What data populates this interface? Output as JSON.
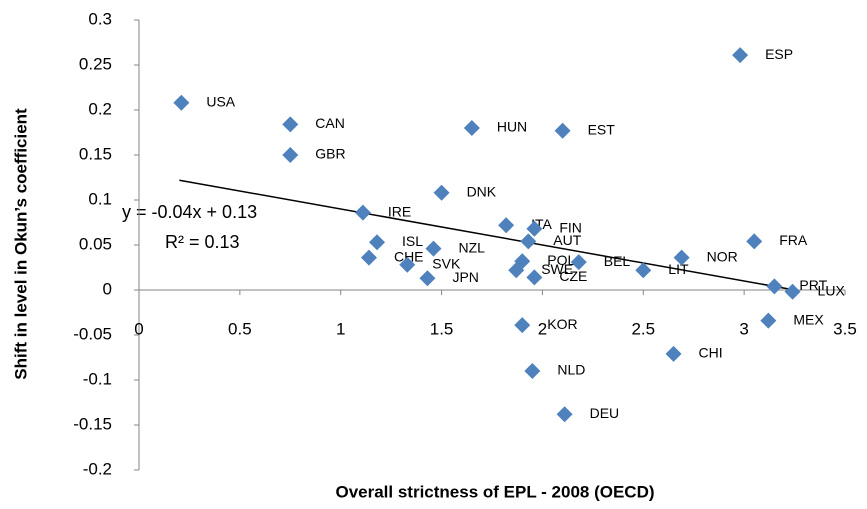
{
  "chart_data": {
    "type": "scatter",
    "x_label": "Overall strictness of EPL - 2008 (OECD)",
    "y_label": "Shift in level in Okun’s coefficient",
    "xlim": [
      0,
      3.5
    ],
    "xticks": [
      0,
      0.5,
      1,
      1.5,
      2,
      2.5,
      3,
      3.5
    ],
    "ylim": [
      -0.2,
      0.3
    ],
    "yticks": [
      -0.2,
      -0.15,
      -0.1,
      -0.05,
      0,
      0.05,
      0.1,
      0.15,
      0.2,
      0.25,
      0.3
    ],
    "series": [
      {
        "color": "#4f81bd",
        "labels": [
          "USA",
          "CAN",
          "GBR",
          "HUN",
          "EST",
          "ESP",
          "DNK",
          "IRE",
          "ITA",
          "FIN",
          "AUT",
          "ISL",
          "NZL",
          "CHE",
          "SVK",
          "JPN",
          "POL",
          "SWE",
          "CZE",
          "BEL",
          "LIT",
          "NOR",
          "FRA",
          "PRT",
          "LUX",
          "MEX",
          "CHI",
          "KOR",
          "NLD",
          "DEU"
        ],
        "x": [
          0.21,
          0.75,
          0.75,
          1.65,
          2.1,
          2.98,
          1.5,
          1.11,
          1.82,
          1.96,
          1.93,
          1.18,
          1.46,
          1.14,
          1.33,
          1.43,
          1.9,
          1.87,
          1.96,
          2.18,
          2.5,
          2.69,
          3.05,
          3.15,
          3.24,
          3.12,
          2.65,
          1.9,
          1.95,
          2.11
        ],
        "values": [
          0.208,
          0.184,
          0.15,
          0.18,
          0.177,
          0.261,
          0.108,
          0.086,
          0.072,
          0.068,
          0.054,
          0.053,
          0.046,
          0.036,
          0.028,
          0.013,
          0.032,
          0.022,
          0.014,
          0.031,
          0.022,
          0.036,
          0.054,
          0.004,
          -0.002,
          -0.034,
          -0.071,
          -0.039,
          -0.09,
          -0.138
        ]
      }
    ],
    "trendline": {
      "x": [
        0.2,
        3.25
      ],
      "y": [
        0.122,
        0
      ],
      "equation": "y = -0.04x + 0.13",
      "r2": "R² = 0.13"
    }
  }
}
